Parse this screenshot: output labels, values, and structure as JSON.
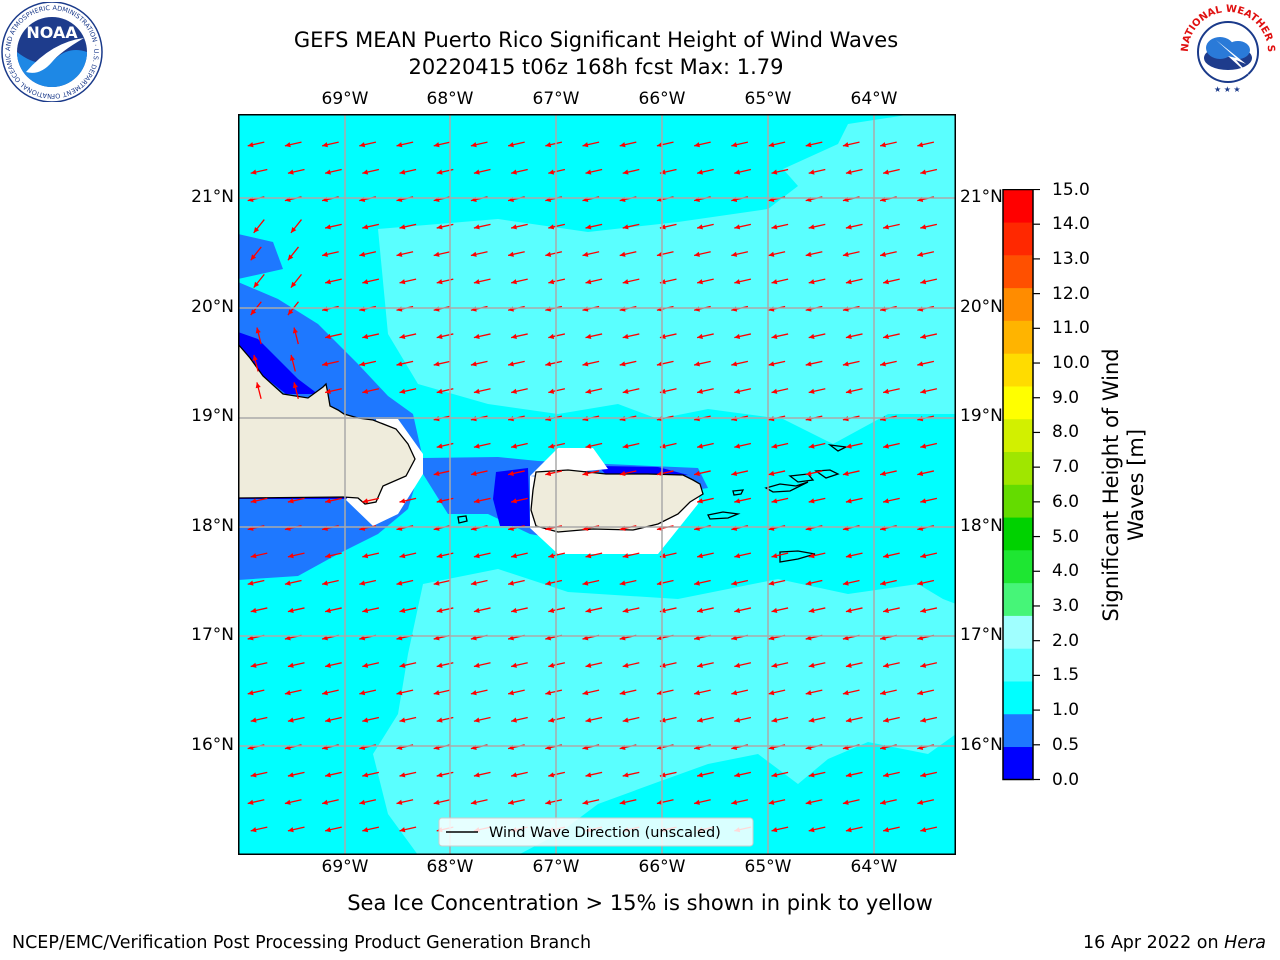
{
  "header": {
    "title_line1": "GEFS MEAN Puerto Rico Significant Height of Wind Waves",
    "title_line2": "20220415 t06z 168h fcst   Max: 1.79"
  },
  "logos": {
    "noaa_text": "NOAA",
    "noaa_ring_text": "NATIONAL OCEANIC AND ATMOSPHERIC ADMINISTRATION · U.S. DEPARTMENT OF COMMERCE",
    "nws_ring_text": "NATIONAL WEATHER SERVICE"
  },
  "map": {
    "lon_ticks": [
      "69°W",
      "68°W",
      "67°W",
      "66°W",
      "65°W",
      "64°W"
    ],
    "lat_ticks": [
      "21°N",
      "20°N",
      "19°N",
      "18°N",
      "17°N",
      "16°N"
    ],
    "legend_label": "Wind Wave Direction (unscaled)",
    "arrow_color": "#ff0000"
  },
  "colorbar": {
    "label_line1": "Significant Height of Wind",
    "label_line2": "Waves [m]",
    "tick_labels": [
      "15.0",
      "14.0",
      "13.0",
      "12.0",
      "11.0",
      "10.0",
      "9.0",
      "8.0",
      "7.0",
      "6.0",
      "5.0",
      "4.0",
      "3.0",
      "2.0",
      "1.5",
      "1.0",
      "0.5",
      "0.0"
    ],
    "colors": [
      "#0000ff",
      "#1e78ff",
      "#00ffff",
      "#5affff",
      "#a0ffff",
      "#46f578",
      "#1ee632",
      "#00d200",
      "#64dc00",
      "#a0e600",
      "#d2f000",
      "#ffff00",
      "#ffdc00",
      "#ffb400",
      "#ff8c00",
      "#ff5000",
      "#ff2800",
      "#ff0000"
    ]
  },
  "footer": {
    "sea_ice_note": "Sea Ice Concentration > 15% is shown in pink to yellow",
    "branch": "NCEP/EMC/Verification Post Processing Product Generation Branch",
    "date": "16 Apr 2022 on ",
    "machine": "Hera"
  }
}
